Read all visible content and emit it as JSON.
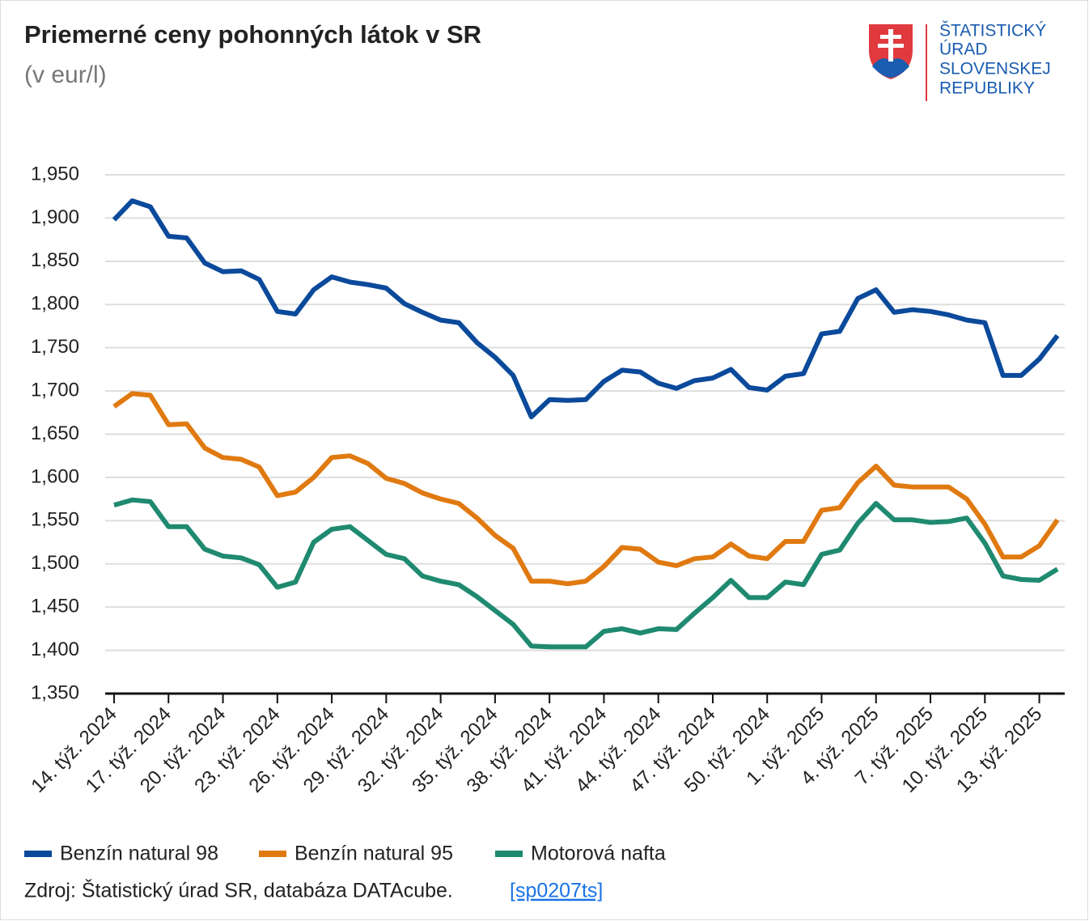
{
  "chart_data": {
    "type": "line",
    "title": "Priemerné ceny pohonných látok v SR",
    "subtitle": "(v eur/l)",
    "categories": [
      "14. týž. 2024",
      null,
      null,
      "17. týž. 2024",
      null,
      null,
      "20. týž. 2024",
      null,
      null,
      "23. týž. 2024",
      null,
      null,
      "26. týž. 2024",
      null,
      null,
      "29. týž. 2024",
      null,
      null,
      "32. týž. 2024",
      null,
      null,
      "35. týž. 2024",
      null,
      null,
      "38. týž. 2024",
      null,
      null,
      "41. týž. 2024",
      null,
      null,
      "44. týž. 2024",
      null,
      null,
      "47. týž. 2024",
      null,
      null,
      "50. týž. 2024",
      null,
      null,
      "1. týž. 2025",
      null,
      null,
      "4. týž. 2025",
      null,
      null,
      "7. týž. 2025",
      null,
      null,
      "10. týž. 2025",
      null,
      null,
      "13. týž. 2025",
      null
    ],
    "series": [
      {
        "name": "Benzín natural 98",
        "color": "#0b4a9b",
        "values": [
          1.898,
          1.92,
          1.913,
          1.879,
          1.877,
          1.848,
          1.838,
          1.839,
          1.829,
          1.792,
          1.789,
          1.817,
          1.832,
          1.826,
          1.823,
          1.819,
          1.801,
          1.791,
          1.782,
          1.779,
          1.756,
          1.739,
          1.718,
          1.67,
          1.69,
          1.689,
          1.69,
          1.711,
          1.724,
          1.722,
          1.709,
          1.703,
          1.712,
          1.715,
          1.725,
          1.704,
          1.701,
          1.717,
          1.72,
          1.766,
          1.769,
          1.807,
          1.817,
          1.791,
          1.794,
          1.792,
          1.788,
          1.782,
          1.779,
          1.718,
          1.718,
          1.737,
          1.764
        ]
      },
      {
        "name": "Benzín natural 95",
        "color": "#e07a10",
        "values": [
          1.682,
          1.697,
          1.695,
          1.661,
          1.662,
          1.634,
          1.623,
          1.621,
          1.612,
          1.579,
          1.583,
          1.6,
          1.623,
          1.625,
          1.616,
          1.599,
          1.593,
          1.582,
          1.575,
          1.57,
          1.553,
          1.533,
          1.518,
          1.48,
          1.48,
          1.477,
          1.48,
          1.497,
          1.519,
          1.517,
          1.502,
          1.498,
          1.506,
          1.508,
          1.523,
          1.509,
          1.506,
          1.526,
          1.526,
          1.562,
          1.565,
          1.594,
          1.613,
          1.591,
          1.589,
          1.589,
          1.589,
          1.575,
          1.546,
          1.508,
          1.508,
          1.521,
          1.551
        ]
      },
      {
        "name": "Motorová nafta",
        "color": "#1f8a70",
        "values": [
          1.568,
          1.574,
          1.572,
          1.543,
          1.543,
          1.517,
          1.509,
          1.507,
          1.499,
          1.473,
          1.479,
          1.525,
          1.54,
          1.543,
          1.527,
          1.511,
          1.506,
          1.486,
          1.48,
          1.476,
          1.462,
          1.446,
          1.43,
          1.405,
          1.404,
          1.404,
          1.404,
          1.422,
          1.425,
          1.42,
          1.425,
          1.424,
          1.443,
          1.461,
          1.481,
          1.461,
          1.461,
          1.479,
          1.476,
          1.511,
          1.516,
          1.547,
          1.57,
          1.551,
          1.551,
          1.548,
          1.549,
          1.553,
          1.524,
          1.486,
          1.482,
          1.481,
          1.494
        ]
      }
    ],
    "ylim": [
      1.35,
      1.95
    ],
    "yticks": [
      {
        "value": 1.35,
        "label": "1,350"
      },
      {
        "value": 1.4,
        "label": "1,400"
      },
      {
        "value": 1.45,
        "label": "1,450"
      },
      {
        "value": 1.5,
        "label": "1,500"
      },
      {
        "value": 1.55,
        "label": "1,550"
      },
      {
        "value": 1.6,
        "label": "1,600"
      },
      {
        "value": 1.65,
        "label": "1,650"
      },
      {
        "value": 1.7,
        "label": "1,700"
      },
      {
        "value": 1.75,
        "label": "1,750"
      },
      {
        "value": 1.8,
        "label": "1,800"
      },
      {
        "value": 1.85,
        "label": "1,850"
      },
      {
        "value": 1.9,
        "label": "1,900"
      },
      {
        "value": 1.95,
        "label": "1,950"
      }
    ],
    "grid": true,
    "legend": "bottom"
  },
  "logo": {
    "lines": [
      "ŠTATISTICKÝ",
      "ÚRAD",
      "SLOVENSKEJ",
      "REPUBLIKY"
    ]
  },
  "source": {
    "text": "Zdroj: Štatistický úrad SR, databáza DATAcube.",
    "link": "[sp0207ts]"
  }
}
